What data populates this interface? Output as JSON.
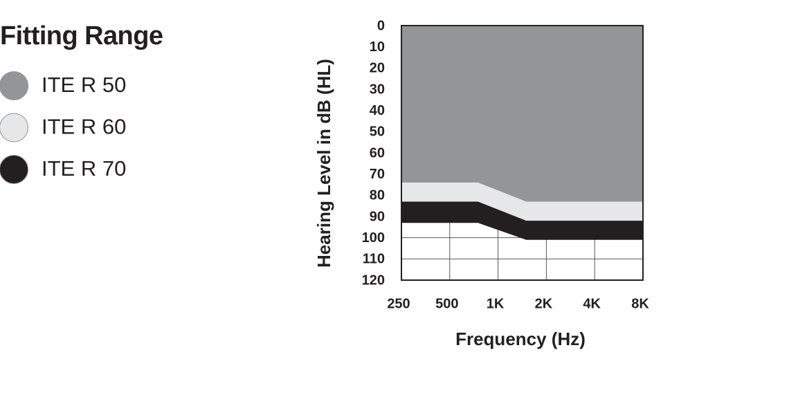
{
  "chart_data": {
    "type": "area",
    "legend_title": "Fitting Range",
    "xlabel": "Frequency (Hz)",
    "ylabel": "Hearing Level in dB (HL)",
    "x": [
      250,
      750,
      1500,
      8000
    ],
    "series": [
      {
        "name": "ITE R 50",
        "color": "#939598",
        "values": [
          74,
          74,
          83,
          83
        ]
      },
      {
        "name": "ITE R 60",
        "color": "#e6e7e8",
        "values": [
          83,
          83,
          92,
          92
        ]
      },
      {
        "name": "ITE R 70",
        "color": "#231f20",
        "values": [
          93,
          93,
          101,
          101
        ]
      }
    ],
    "xlim": [
      250,
      8000
    ],
    "xticks": [
      250,
      500,
      {
        "value": 1000,
        "label": "1K"
      },
      {
        "value": 2000,
        "label": "2K"
      },
      {
        "value": 4000,
        "label": "4K"
      },
      {
        "value": 8000,
        "label": "8K"
      }
    ],
    "xscale": "log",
    "ylim": [
      0,
      120
    ],
    "yticks": [
      0,
      10,
      20,
      30,
      40,
      50,
      60,
      70,
      80,
      90,
      100,
      110,
      120
    ],
    "y_inverted": true,
    "grid": true,
    "legend": "left"
  }
}
